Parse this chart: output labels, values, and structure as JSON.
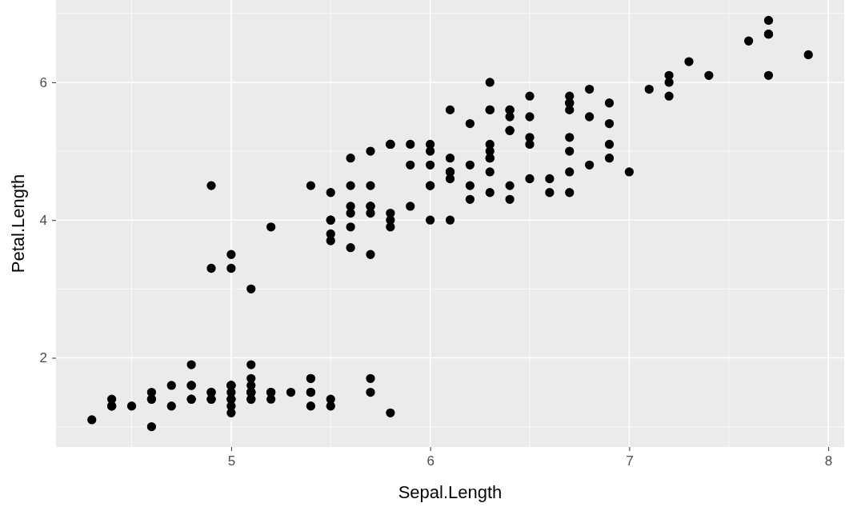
{
  "chart_data": {
    "type": "scatter",
    "xlabel": "Sepal.Length",
    "ylabel": "Petal.Length",
    "xlim": [
      4.12,
      8.08
    ],
    "ylim": [
      0.705,
      7.195
    ],
    "xticks": [
      5,
      6,
      7,
      8
    ],
    "yticks": [
      2,
      4,
      6
    ],
    "grid": true,
    "marker": "circle",
    "series": [
      {
        "color": "#000000",
        "x": [
          5.1,
          4.9,
          4.7,
          4.6,
          5.0,
          5.4,
          4.6,
          5.0,
          4.4,
          4.9,
          5.4,
          4.8,
          4.8,
          4.3,
          5.8,
          5.7,
          5.4,
          5.1,
          5.7,
          5.1,
          5.4,
          5.1,
          4.6,
          5.1,
          4.8,
          5.0,
          5.0,
          5.2,
          5.2,
          4.7,
          4.8,
          5.4,
          5.2,
          5.5,
          4.9,
          5.0,
          5.5,
          4.9,
          4.4,
          5.1,
          5.0,
          4.5,
          4.4,
          5.0,
          5.1,
          4.8,
          5.1,
          4.6,
          5.3,
          5.0,
          7.0,
          6.4,
          6.9,
          5.5,
          6.5,
          5.7,
          6.3,
          4.9,
          6.6,
          5.2,
          5.0,
          5.9,
          6.0,
          6.1,
          5.6,
          6.7,
          5.6,
          5.8,
          6.2,
          5.6,
          5.9,
          6.1,
          6.3,
          6.1,
          6.4,
          6.6,
          6.8,
          6.7,
          6.0,
          5.7,
          5.5,
          5.5,
          5.8,
          6.0,
          5.4,
          6.0,
          6.7,
          6.3,
          5.6,
          5.5,
          5.5,
          6.1,
          5.8,
          5.0,
          5.6,
          5.7,
          5.7,
          6.2,
          5.1,
          5.7,
          6.3,
          5.8,
          7.1,
          6.3,
          6.5,
          7.6,
          4.9,
          7.3,
          6.7,
          7.2,
          6.5,
          6.4,
          6.8,
          5.7,
          5.8,
          6.4,
          6.5,
          7.7,
          7.7,
          6.0,
          6.9,
          5.6,
          7.7,
          6.3,
          6.7,
          7.2,
          6.2,
          6.1,
          6.4,
          7.2,
          7.4,
          7.9,
          6.4,
          6.3,
          6.1,
          7.7,
          6.3,
          6.4,
          6.0,
          6.9,
          6.7,
          6.9,
          5.8,
          6.8,
          6.7,
          6.7,
          6.3,
          6.5,
          6.2,
          5.9
        ],
        "values": [
          1.4,
          1.4,
          1.3,
          1.5,
          1.4,
          1.7,
          1.4,
          1.5,
          1.4,
          1.5,
          1.5,
          1.6,
          1.4,
          1.1,
          1.2,
          1.5,
          1.3,
          1.4,
          1.7,
          1.5,
          1.7,
          1.5,
          1.0,
          1.7,
          1.9,
          1.6,
          1.6,
          1.5,
          1.4,
          1.6,
          1.6,
          1.5,
          1.5,
          1.4,
          1.5,
          1.2,
          1.3,
          1.4,
          1.3,
          1.5,
          1.3,
          1.3,
          1.3,
          1.6,
          1.9,
          1.4,
          1.6,
          1.4,
          1.5,
          1.4,
          4.7,
          4.5,
          4.9,
          4.0,
          4.6,
          4.5,
          4.7,
          3.3,
          4.6,
          3.9,
          3.5,
          4.2,
          4.0,
          4.7,
          3.6,
          4.4,
          4.5,
          4.1,
          4.5,
          3.9,
          4.8,
          4.0,
          4.9,
          4.7,
          4.3,
          4.4,
          4.8,
          5.0,
          4.5,
          3.5,
          3.8,
          3.7,
          3.9,
          5.1,
          4.5,
          4.5,
          4.7,
          4.4,
          4.1,
          4.0,
          4.4,
          4.6,
          4.0,
          3.3,
          4.2,
          4.2,
          4.2,
          4.3,
          3.0,
          4.1,
          6.0,
          5.1,
          5.9,
          5.6,
          5.8,
          6.6,
          4.5,
          6.3,
          5.8,
          6.1,
          5.1,
          5.3,
          5.5,
          5.0,
          5.1,
          5.3,
          5.5,
          6.7,
          6.9,
          5.0,
          5.7,
          4.9,
          6.7,
          4.9,
          5.7,
          6.0,
          4.8,
          4.9,
          5.6,
          5.8,
          6.1,
          6.4,
          5.6,
          5.1,
          5.6,
          6.1,
          5.6,
          5.5,
          4.8,
          5.4,
          5.6,
          5.1,
          5.1,
          5.9,
          5.7,
          5.2,
          5.0,
          5.2,
          5.4,
          5.1
        ]
      }
    ]
  }
}
